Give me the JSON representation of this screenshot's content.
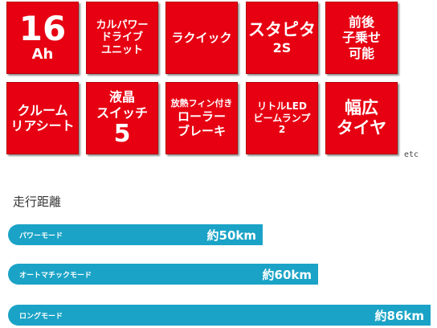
{
  "tiles": [
    {
      "l1": "16",
      "l2": "Ah"
    },
    {
      "l1": "カルパワー",
      "l2": "ドライブ",
      "l3": "ユニット"
    },
    {
      "l1": "ラクイック"
    },
    {
      "l1": "スタピタ",
      "l2": "2S"
    },
    {
      "l1": "前後",
      "l2": "子乗せ",
      "l3": "可能"
    },
    {
      "l1": "クルーム",
      "l2": "リアシート"
    },
    {
      "l1": "液晶",
      "l2": "スイッチ",
      "l3": "5"
    },
    {
      "l1": "放熱フィン付き",
      "l2": "ローラー",
      "l3": "ブレーキ"
    },
    {
      "l1": "リトルLED",
      "l2": "ビームランプ",
      "l3": "2"
    },
    {
      "l1": "幅広",
      "l2": "タイヤ"
    }
  ],
  "etc_label": "etc",
  "section_title": "走行距離",
  "modes": [
    {
      "name": "パワーモード",
      "distance": "約50km",
      "km": 50
    },
    {
      "name": "オートマチックモード",
      "distance": "約60km",
      "km": 60
    },
    {
      "name": "ロングモード",
      "distance": "約86km",
      "km": 86
    }
  ],
  "colors": {
    "tile_red": "#e60012",
    "bar_blue": "#1aa3c6"
  }
}
